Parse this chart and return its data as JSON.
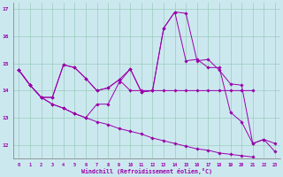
{
  "xlabel": "Windchill (Refroidissement éolien,°C)",
  "bg_color": "#cce8ef",
  "line_color": "#9900aa",
  "grid_color": "#99ccbb",
  "x_values": [
    0,
    1,
    2,
    3,
    4,
    5,
    6,
    7,
    8,
    9,
    10,
    11,
    12,
    13,
    14,
    15,
    16,
    17,
    18,
    19,
    20,
    21,
    22,
    23
  ],
  "series": [
    [
      14.75,
      14.2,
      13.75,
      13.75,
      14.95,
      14.85,
      14.45,
      14.0,
      14.1,
      14.4,
      14.8,
      13.95,
      14.0,
      16.3,
      16.9,
      16.85,
      15.1,
      15.15,
      14.75,
      14.25,
      14.2,
      12.05,
      12.2,
      12.05
    ],
    [
      14.75,
      14.2,
      13.75,
      13.75,
      14.95,
      14.85,
      14.45,
      14.0,
      14.1,
      14.4,
      14.0,
      14.0,
      14.0,
      14.0,
      14.0,
      14.0,
      14.0,
      14.0,
      14.0,
      14.0,
      14.0,
      14.0,
      null,
      null
    ],
    [
      14.75,
      14.2,
      13.75,
      13.5,
      13.35,
      13.15,
      13.0,
      12.85,
      12.75,
      12.6,
      12.5,
      12.4,
      12.25,
      12.15,
      12.05,
      11.95,
      11.85,
      11.8,
      11.7,
      11.65,
      11.6,
      11.55,
      null,
      null
    ],
    [
      14.75,
      14.2,
      13.75,
      13.5,
      13.35,
      13.15,
      13.0,
      13.5,
      13.5,
      14.3,
      14.8,
      13.95,
      14.0,
      16.3,
      16.9,
      15.1,
      15.15,
      14.85,
      14.85,
      13.2,
      12.85,
      12.05,
      12.2,
      11.75
    ]
  ],
  "ylim": [
    11.5,
    17.25
  ],
  "yticks": [
    12,
    13,
    14,
    15,
    16,
    17
  ],
  "xlim": [
    -0.5,
    23.5
  ],
  "xticks": [
    0,
    1,
    2,
    3,
    4,
    5,
    6,
    7,
    8,
    9,
    10,
    11,
    12,
    13,
    14,
    15,
    16,
    17,
    18,
    19,
    20,
    21,
    22,
    23
  ]
}
